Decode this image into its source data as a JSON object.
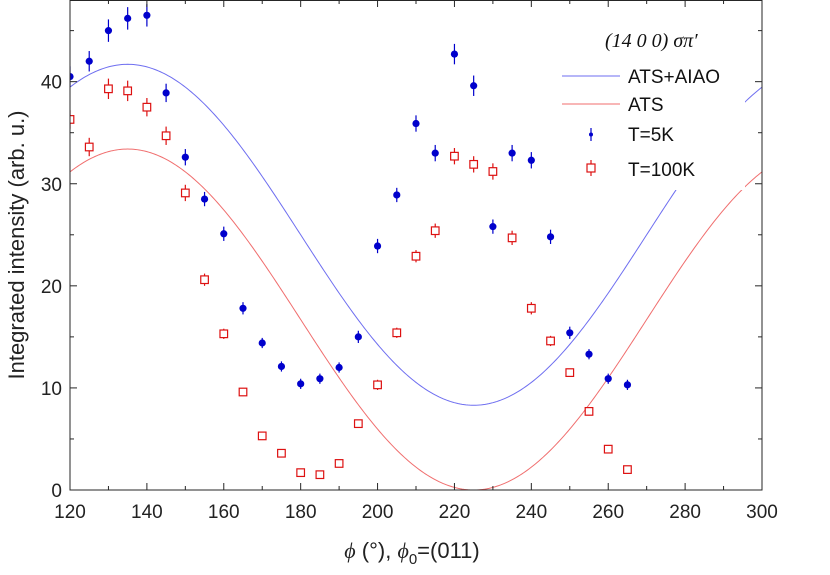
{
  "chart_data": {
    "type": "scatter",
    "title": "(14 0 0) σπ′",
    "xlabel": "ϕ (°), ϕ0=(011)",
    "xlabel_parts": {
      "symbol": "ϕ",
      "unit": " (°), ",
      "symbol2": "ϕ",
      "subscript": "0",
      "rest": "=(011)"
    },
    "ylabel": "Integrated intensity (arb. u.)",
    "xlim": [
      120,
      300
    ],
    "ylim": [
      0,
      48
    ],
    "xticks": [
      120,
      140,
      160,
      180,
      200,
      220,
      240,
      260,
      280,
      300
    ],
    "yticks": [
      0,
      10,
      20,
      30,
      40
    ],
    "legend_position": "top-right",
    "colors": {
      "blue": "#0000cc",
      "red": "#dd1111",
      "blue_line": "#6e6ef0",
      "red_line": "#f06e6e"
    },
    "series": [
      {
        "name": "ATS+AIAO",
        "kind": "line",
        "color": "#6e6ef0",
        "model": "a + b*cos(2*(phi-135))",
        "mean": 25.0,
        "amplitude": 16.7
      },
      {
        "name": "ATS",
        "kind": "line",
        "color": "#f06e6e",
        "model": "a + b*cos(2*(phi-135))",
        "mean": 16.7,
        "amplitude": 16.7
      },
      {
        "name": "T=5K",
        "kind": "points",
        "marker": "filled-circle",
        "color": "#0000cc",
        "x": [
          120,
          125,
          130,
          135,
          140,
          145,
          150,
          155,
          160,
          165,
          170,
          175,
          180,
          185,
          190,
          195,
          200,
          205,
          210,
          215,
          220,
          225,
          230,
          235,
          240,
          245,
          250,
          255,
          260,
          265
        ],
        "y": [
          40.5,
          42.0,
          45.0,
          46.2,
          46.5,
          38.9,
          32.6,
          28.5,
          25.1,
          17.8,
          14.4,
          12.1,
          10.4,
          10.9,
          12.0,
          15.0,
          23.9,
          28.9,
          35.9,
          33.0,
          42.7,
          39.6,
          25.8,
          33.0,
          32.3,
          24.8,
          15.4,
          13.3,
          10.9,
          10.3
        ],
        "err": [
          1.0,
          1.0,
          1.1,
          1.1,
          1.1,
          0.9,
          0.8,
          0.7,
          0.7,
          0.6,
          0.5,
          0.5,
          0.5,
          0.5,
          0.5,
          0.6,
          0.7,
          0.7,
          0.8,
          0.8,
          1.0,
          1.0,
          0.7,
          0.8,
          0.8,
          0.7,
          0.6,
          0.5,
          0.5,
          0.5
        ]
      },
      {
        "name": "T=100K",
        "kind": "points",
        "marker": "open-square",
        "color": "#dd1111",
        "x": [
          120,
          125,
          130,
          135,
          140,
          145,
          150,
          155,
          160,
          165,
          170,
          175,
          180,
          185,
          190,
          195,
          200,
          205,
          210,
          215,
          220,
          225,
          230,
          235,
          240,
          245,
          250,
          255,
          260,
          265
        ],
        "y": [
          36.3,
          33.6,
          39.3,
          39.1,
          37.5,
          34.7,
          29.1,
          20.6,
          15.3,
          9.6,
          5.3,
          3.6,
          1.7,
          1.5,
          2.6,
          6.5,
          10.3,
          15.4,
          22.9,
          25.4,
          32.7,
          31.9,
          31.2,
          24.7,
          17.8,
          14.6,
          11.5,
          7.7,
          4.0,
          2.0
        ],
        "err": [
          0.9,
          0.9,
          1.0,
          1.0,
          0.9,
          0.9,
          0.8,
          0.6,
          0.5,
          0.4,
          0.3,
          0.3,
          0.3,
          0.3,
          0.3,
          0.4,
          0.5,
          0.5,
          0.6,
          0.7,
          0.8,
          0.8,
          0.8,
          0.7,
          0.6,
          0.5,
          0.4,
          0.4,
          0.3,
          0.3
        ]
      }
    ]
  }
}
